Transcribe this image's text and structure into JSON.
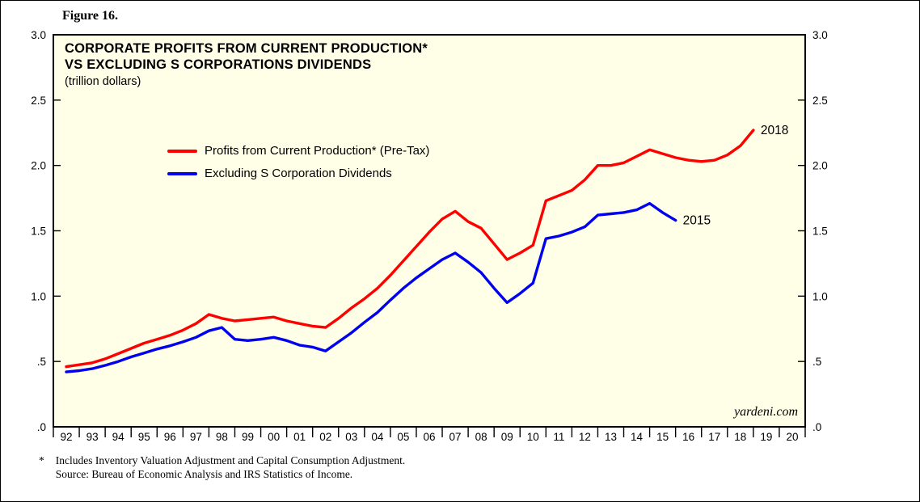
{
  "figure_label": "Figure 16.",
  "title": {
    "line1": "CORPORATE PROFITS FROM CURRENT PRODUCTION*",
    "line2": "VS EXCLUDING S CORPORATIONS DIVIDENDS",
    "subtitle": "(trillion dollars)"
  },
  "watermark": "yardeni.com",
  "footnote": {
    "marker": "*",
    "line1": "Includes Inventory Valuation Adjustment and Capital Consumption Adjustment.",
    "line2": "Source: Bureau of Economic Analysis and IRS Statistics of Income."
  },
  "colors": {
    "plot_bg": "#FFFFE7",
    "frame": "#000000",
    "red": "#FF0000",
    "blue": "#0000EE"
  },
  "chart_data": {
    "type": "line",
    "title": "CORPORATE PROFITS FROM CURRENT PRODUCTION* VS EXCLUDING S CORPORATIONS DIVIDENDS",
    "units": "trillion dollars",
    "ylim": [
      0.0,
      3.0
    ],
    "y_ticks": [
      3.0,
      2.5,
      2.0,
      1.5,
      1.0,
      0.5,
      0.0
    ],
    "y_tick_labels": [
      "3.0",
      "2.5",
      "2.0",
      "1.5",
      "1.0",
      ".5",
      ".0"
    ],
    "x_labels": [
      "92",
      "93",
      "94",
      "95",
      "96",
      "97",
      "98",
      "99",
      "00",
      "01",
      "02",
      "03",
      "04",
      "05",
      "06",
      "07",
      "08",
      "09",
      "10",
      "11",
      "12",
      "13",
      "14",
      "15",
      "16",
      "17",
      "18",
      "19",
      "20"
    ],
    "x_domain": [
      1992,
      2021
    ],
    "grid": false,
    "legend_position": "upper-left-inside",
    "series": [
      {
        "id": "pretax",
        "name": "Profits from Current Production* (Pre-Tax)",
        "color": "#FF0000",
        "end_label": "2018",
        "points": [
          [
            1992,
            0.46
          ],
          [
            1992.5,
            0.475
          ],
          [
            1993,
            0.49
          ],
          [
            1993.5,
            0.52
          ],
          [
            1994,
            0.56
          ],
          [
            1994.5,
            0.6
          ],
          [
            1995,
            0.64
          ],
          [
            1995.5,
            0.67
          ],
          [
            1996,
            0.7
          ],
          [
            1996.5,
            0.74
          ],
          [
            1997,
            0.79
          ],
          [
            1997.5,
            0.86
          ],
          [
            1998,
            0.83
          ],
          [
            1998.5,
            0.81
          ],
          [
            1999,
            0.82
          ],
          [
            1999.5,
            0.83
          ],
          [
            2000,
            0.84
          ],
          [
            2000.5,
            0.81
          ],
          [
            2001,
            0.79
          ],
          [
            2001.5,
            0.77
          ],
          [
            2002,
            0.76
          ],
          [
            2002.5,
            0.83
          ],
          [
            2003,
            0.91
          ],
          [
            2003.5,
            0.98
          ],
          [
            2004,
            1.06
          ],
          [
            2004.5,
            1.16
          ],
          [
            2005,
            1.27
          ],
          [
            2005.5,
            1.38
          ],
          [
            2006,
            1.49
          ],
          [
            2006.5,
            1.59
          ],
          [
            2007,
            1.65
          ],
          [
            2007.5,
            1.57
          ],
          [
            2008,
            1.52
          ],
          [
            2008.5,
            1.4
          ],
          [
            2009,
            1.28
          ],
          [
            2009.5,
            1.33
          ],
          [
            2010,
            1.39
          ],
          [
            2010.5,
            1.73
          ],
          [
            2011,
            1.77
          ],
          [
            2011.5,
            1.81
          ],
          [
            2012,
            1.89
          ],
          [
            2012.5,
            2.0
          ],
          [
            2013,
            2.0
          ],
          [
            2013.5,
            2.02
          ],
          [
            2014,
            2.07
          ],
          [
            2014.5,
            2.12
          ],
          [
            2015,
            2.09
          ],
          [
            2015.5,
            2.06
          ],
          [
            2016,
            2.04
          ],
          [
            2016.5,
            2.03
          ],
          [
            2017,
            2.04
          ],
          [
            2017.5,
            2.08
          ],
          [
            2018,
            2.15
          ],
          [
            2018.5,
            2.27
          ]
        ]
      },
      {
        "id": "ex-s-corp",
        "name": "Excluding S Corporation Dividends",
        "color": "#0000EE",
        "end_label": "2015",
        "points": [
          [
            1992,
            0.42
          ],
          [
            1992.5,
            0.43
          ],
          [
            1993,
            0.445
          ],
          [
            1993.5,
            0.47
          ],
          [
            1994,
            0.5
          ],
          [
            1994.5,
            0.535
          ],
          [
            1995,
            0.565
          ],
          [
            1995.5,
            0.595
          ],
          [
            1996,
            0.62
          ],
          [
            1996.5,
            0.65
          ],
          [
            1997,
            0.685
          ],
          [
            1997.5,
            0.735
          ],
          [
            1998,
            0.76
          ],
          [
            1998.5,
            0.67
          ],
          [
            1999,
            0.66
          ],
          [
            1999.5,
            0.67
          ],
          [
            2000,
            0.685
          ],
          [
            2000.5,
            0.66
          ],
          [
            2001,
            0.625
          ],
          [
            2001.5,
            0.61
          ],
          [
            2002,
            0.58
          ],
          [
            2002.5,
            0.65
          ],
          [
            2003,
            0.72
          ],
          [
            2003.5,
            0.8
          ],
          [
            2004,
            0.875
          ],
          [
            2004.5,
            0.97
          ],
          [
            2005,
            1.06
          ],
          [
            2005.5,
            1.14
          ],
          [
            2006,
            1.21
          ],
          [
            2006.5,
            1.28
          ],
          [
            2007,
            1.33
          ],
          [
            2007.5,
            1.26
          ],
          [
            2008,
            1.18
          ],
          [
            2008.5,
            1.06
          ],
          [
            2009,
            0.95
          ],
          [
            2009.5,
            1.02
          ],
          [
            2010,
            1.1
          ],
          [
            2010.5,
            1.44
          ],
          [
            2011,
            1.46
          ],
          [
            2011.5,
            1.49
          ],
          [
            2012,
            1.53
          ],
          [
            2012.5,
            1.62
          ],
          [
            2013,
            1.63
          ],
          [
            2013.5,
            1.64
          ],
          [
            2014,
            1.66
          ],
          [
            2014.5,
            1.71
          ],
          [
            2015,
            1.64
          ],
          [
            2015.5,
            1.58
          ]
        ]
      }
    ]
  }
}
